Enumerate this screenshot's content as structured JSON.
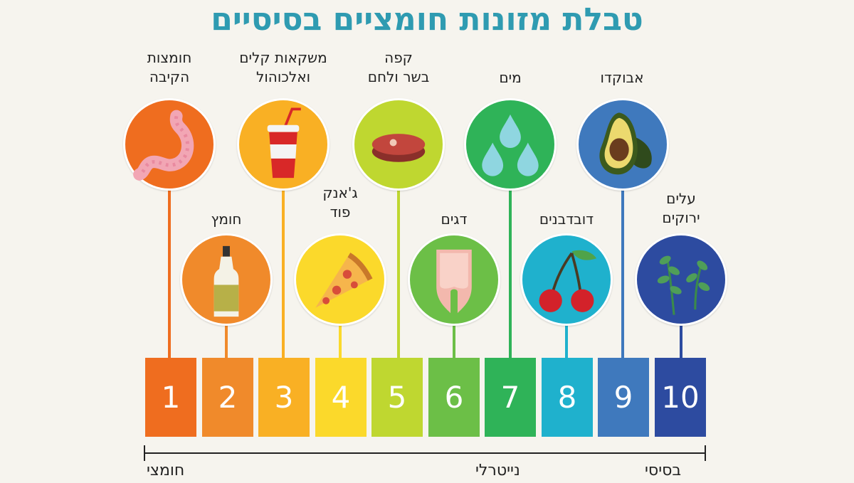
{
  "title": "טבלת מזונות חומציים בסיסיים",
  "items": [
    {
      "level": "1",
      "label": "חומצות\nהקיבה",
      "color": "#ef6d1f",
      "icon": "stomach-icon"
    },
    {
      "level": "2",
      "label": "חומץ",
      "color": "#f08a2b",
      "icon": "vinegar-bottle-icon"
    },
    {
      "level": "3",
      "label": "משקאות קלים\nואלכוהול",
      "color": "#f9b024",
      "icon": "soda-cup-icon"
    },
    {
      "level": "4",
      "label": "ג'אנק\nפוד",
      "color": "#fbd92b",
      "icon": "pizza-slice-icon"
    },
    {
      "level": "5",
      "label": "קפה\nבשר ולחם",
      "color": "#bfd730",
      "icon": "steak-icon"
    },
    {
      "level": "6",
      "label": "דגים",
      "color": "#6cbf47",
      "icon": "fish-steak-icon"
    },
    {
      "level": "7",
      "label": "מים",
      "color": "#2fb358",
      "icon": "water-drops-icon"
    },
    {
      "level": "8",
      "label": "דובדבנים",
      "color": "#1fb1cd",
      "icon": "cherries-icon"
    },
    {
      "level": "9",
      "label": "אבוקדו",
      "color": "#3f79bd",
      "icon": "avocado-icon"
    },
    {
      "level": "10",
      "label": "עלים\nירוקים",
      "color": "#2d4ba0",
      "icon": "green-leaves-icon"
    }
  ],
  "scale": {
    "acidic": "חומצי",
    "neutral": "נייטרלי",
    "basic": "בסיסי"
  }
}
